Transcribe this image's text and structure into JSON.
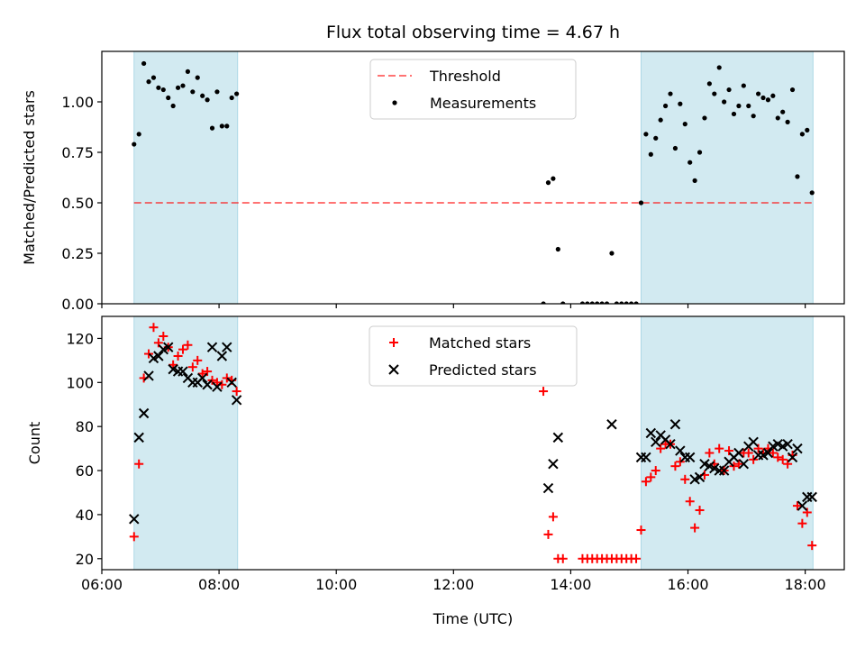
{
  "chart_data": [
    {
      "type": "scatter",
      "title": "Flux total observing time = 4.67 h",
      "ylabel": "Matched/Predicted stars",
      "xlim": [
        "06:00",
        "18:40"
      ],
      "ylim": [
        0,
        1.25
      ],
      "yticks": [
        "0.00",
        "0.25",
        "0.50",
        "0.75",
        "1.00"
      ],
      "xticks": [
        "06:00",
        "08:00",
        "10:00",
        "12:00",
        "14:00",
        "16:00",
        "18:00"
      ],
      "shaded_intervals": [
        [
          "06:33",
          "08:19"
        ],
        [
          "15:12",
          "18:08"
        ]
      ],
      "shade_color": "#add8e6",
      "threshold": {
        "name": "Threshold",
        "y": 0.5,
        "x_range": [
          "06:33",
          "18:08"
        ],
        "color": "#ff0000"
      },
      "legend_position": "upper-center",
      "series": [
        {
          "name": "Measurements",
          "marker": "dot",
          "color": "#000000",
          "points": [
            [
              "06:33",
              0.79
            ],
            [
              "06:38",
              0.84
            ],
            [
              "06:43",
              1.19
            ],
            [
              "06:48",
              1.1
            ],
            [
              "06:53",
              1.12
            ],
            [
              "06:58",
              1.07
            ],
            [
              "07:03",
              1.06
            ],
            [
              "07:08",
              1.02
            ],
            [
              "07:13",
              0.98
            ],
            [
              "07:18",
              1.07
            ],
            [
              "07:23",
              1.08
            ],
            [
              "07:28",
              1.15
            ],
            [
              "07:33",
              1.05
            ],
            [
              "07:38",
              1.12
            ],
            [
              "07:43",
              1.03
            ],
            [
              "07:48",
              1.01
            ],
            [
              "07:53",
              0.87
            ],
            [
              "07:58",
              1.05
            ],
            [
              "08:03",
              0.88
            ],
            [
              "08:08",
              0.88
            ],
            [
              "08:13",
              1.02
            ],
            [
              "08:18",
              1.04
            ],
            [
              "13:32",
              0.0
            ],
            [
              "13:37",
              0.6
            ],
            [
              "13:42",
              0.62
            ],
            [
              "13:47",
              0.27
            ],
            [
              "13:52",
              0.0
            ],
            [
              "14:12",
              0.0
            ],
            [
              "14:17",
              0.0
            ],
            [
              "14:22",
              0.0
            ],
            [
              "14:27",
              0.0
            ],
            [
              "14:32",
              0.0
            ],
            [
              "14:37",
              0.0
            ],
            [
              "14:42",
              0.25
            ],
            [
              "14:47",
              0.0
            ],
            [
              "14:52",
              0.0
            ],
            [
              "14:57",
              0.0
            ],
            [
              "15:02",
              0.0
            ],
            [
              "15:07",
              0.0
            ],
            [
              "15:12",
              0.5
            ],
            [
              "15:17",
              0.84
            ],
            [
              "15:22",
              0.74
            ],
            [
              "15:27",
              0.82
            ],
            [
              "15:32",
              0.91
            ],
            [
              "15:37",
              0.98
            ],
            [
              "15:42",
              1.04
            ],
            [
              "15:47",
              0.77
            ],
            [
              "15:52",
              0.99
            ],
            [
              "15:57",
              0.89
            ],
            [
              "16:02",
              0.7
            ],
            [
              "16:07",
              0.61
            ],
            [
              "16:12",
              0.75
            ],
            [
              "16:17",
              0.92
            ],
            [
              "16:22",
              1.09
            ],
            [
              "16:27",
              1.04
            ],
            [
              "16:32",
              1.17
            ],
            [
              "16:37",
              1.0
            ],
            [
              "16:42",
              1.06
            ],
            [
              "16:47",
              0.94
            ],
            [
              "16:52",
              0.98
            ],
            [
              "16:57",
              1.08
            ],
            [
              "17:02",
              0.98
            ],
            [
              "17:07",
              0.93
            ],
            [
              "17:12",
              1.04
            ],
            [
              "17:17",
              1.02
            ],
            [
              "17:22",
              1.01
            ],
            [
              "17:27",
              1.03
            ],
            [
              "17:32",
              0.92
            ],
            [
              "17:37",
              0.95
            ],
            [
              "17:42",
              0.9
            ],
            [
              "17:47",
              1.06
            ],
            [
              "17:52",
              0.63
            ],
            [
              "17:57",
              0.84
            ],
            [
              "18:02",
              0.86
            ],
            [
              "18:07",
              0.55
            ]
          ]
        }
      ]
    },
    {
      "type": "scatter",
      "xlabel": "Time (UTC)",
      "ylabel": "Count",
      "xlim": [
        "06:00",
        "18:40"
      ],
      "ylim": [
        15,
        130
      ],
      "yticks": [
        "20",
        "40",
        "60",
        "80",
        "100",
        "120"
      ],
      "xticks": [
        "06:00",
        "08:00",
        "10:00",
        "12:00",
        "14:00",
        "16:00",
        "18:00"
      ],
      "shaded_intervals": [
        [
          "06:33",
          "08:19"
        ],
        [
          "15:12",
          "18:08"
        ]
      ],
      "shade_color": "#add8e6",
      "legend_position": "upper-center",
      "series": [
        {
          "name": "Matched stars",
          "marker": "plus",
          "color": "#ff0000",
          "points": [
            [
              "06:33",
              30
            ],
            [
              "06:38",
              63
            ],
            [
              "06:43",
              102
            ],
            [
              "06:48",
              113
            ],
            [
              "06:53",
              125
            ],
            [
              "06:58",
              118
            ],
            [
              "07:03",
              121
            ],
            [
              "07:08",
              116
            ],
            [
              "07:13",
              108
            ],
            [
              "07:18",
              112
            ],
            [
              "07:23",
              115
            ],
            [
              "07:28",
              117
            ],
            [
              "07:33",
              107
            ],
            [
              "07:38",
              110
            ],
            [
              "07:43",
              104
            ],
            [
              "07:48",
              105
            ],
            [
              "07:53",
              101
            ],
            [
              "07:58",
              100
            ],
            [
              "08:03",
              99
            ],
            [
              "08:08",
              102
            ],
            [
              "08:13",
              101
            ],
            [
              "08:18",
              96
            ],
            [
              "13:32",
              96
            ],
            [
              "13:37",
              31
            ],
            [
              "13:42",
              39
            ],
            [
              "13:47",
              20
            ],
            [
              "13:52",
              20
            ],
            [
              "14:12",
              20
            ],
            [
              "14:17",
              20
            ],
            [
              "14:22",
              20
            ],
            [
              "14:27",
              20
            ],
            [
              "14:32",
              20
            ],
            [
              "14:37",
              20
            ],
            [
              "14:42",
              20
            ],
            [
              "14:47",
              20
            ],
            [
              "14:52",
              20
            ],
            [
              "14:57",
              20
            ],
            [
              "15:02",
              20
            ],
            [
              "15:07",
              20
            ],
            [
              "15:12",
              33
            ],
            [
              "15:17",
              55
            ],
            [
              "15:22",
              57
            ],
            [
              "15:27",
              60
            ],
            [
              "15:32",
              70
            ],
            [
              "15:37",
              72
            ],
            [
              "15:42",
              72
            ],
            [
              "15:47",
              62
            ],
            [
              "15:52",
              64
            ],
            [
              "15:57",
              56
            ],
            [
              "16:02",
              46
            ],
            [
              "16:07",
              34
            ],
            [
              "16:12",
              42
            ],
            [
              "16:17",
              58
            ],
            [
              "16:22",
              68
            ],
            [
              "16:27",
              63
            ],
            [
              "16:32",
              70
            ],
            [
              "16:37",
              60
            ],
            [
              "16:42",
              69
            ],
            [
              "16:47",
              62
            ],
            [
              "16:52",
              63
            ],
            [
              "16:57",
              68
            ],
            [
              "17:02",
              68
            ],
            [
              "17:07",
              65
            ],
            [
              "17:12",
              70
            ],
            [
              "17:17",
              68
            ],
            [
              "17:22",
              70
            ],
            [
              "17:27",
              68
            ],
            [
              "17:32",
              66
            ],
            [
              "17:37",
              65
            ],
            [
              "17:42",
              63
            ],
            [
              "17:47",
              67
            ],
            [
              "17:52",
              44
            ],
            [
              "17:57",
              36
            ],
            [
              "18:02",
              41
            ],
            [
              "18:07",
              26
            ]
          ]
        },
        {
          "name": "Predicted stars",
          "marker": "x",
          "color": "#000000",
          "points": [
            [
              "06:33",
              38
            ],
            [
              "06:38",
              75
            ],
            [
              "06:43",
              86
            ],
            [
              "06:48",
              103
            ],
            [
              "06:53",
              111
            ],
            [
              "06:58",
              112
            ],
            [
              "07:03",
              115
            ],
            [
              "07:08",
              116
            ],
            [
              "07:13",
              106
            ],
            [
              "07:18",
              105
            ],
            [
              "07:23",
              105
            ],
            [
              "07:28",
              102
            ],
            [
              "07:33",
              100
            ],
            [
              "07:38",
              100
            ],
            [
              "07:43",
              102
            ],
            [
              "07:48",
              99
            ],
            [
              "07:53",
              116
            ],
            [
              "07:58",
              98
            ],
            [
              "08:03",
              112
            ],
            [
              "08:08",
              116
            ],
            [
              "08:13",
              100
            ],
            [
              "08:18",
              92
            ],
            [
              "13:37",
              52
            ],
            [
              "13:42",
              63
            ],
            [
              "13:47",
              75
            ],
            [
              "14:42",
              81
            ],
            [
              "15:12",
              66
            ],
            [
              "15:17",
              66
            ],
            [
              "15:22",
              77
            ],
            [
              "15:27",
              73
            ],
            [
              "15:32",
              76
            ],
            [
              "15:37",
              74
            ],
            [
              "15:42",
              72
            ],
            [
              "15:47",
              81
            ],
            [
              "15:52",
              69
            ],
            [
              "15:57",
              66
            ],
            [
              "16:02",
              66
            ],
            [
              "16:07",
              56
            ],
            [
              "16:12",
              57
            ],
            [
              "16:17",
              63
            ],
            [
              "16:22",
              62
            ],
            [
              "16:27",
              61
            ],
            [
              "16:32",
              60
            ],
            [
              "16:37",
              60
            ],
            [
              "16:42",
              64
            ],
            [
              "16:47",
              66
            ],
            [
              "16:52",
              68
            ],
            [
              "16:57",
              63
            ],
            [
              "17:02",
              71
            ],
            [
              "17:07",
              73
            ],
            [
              "17:12",
              67
            ],
            [
              "17:17",
              67
            ],
            [
              "17:22",
              68
            ],
            [
              "17:27",
              71
            ],
            [
              "17:32",
              72
            ],
            [
              "17:37",
              71
            ],
            [
              "17:42",
              72
            ],
            [
              "17:47",
              66
            ],
            [
              "17:52",
              70
            ],
            [
              "17:57",
              44
            ],
            [
              "18:02",
              48
            ],
            [
              "18:07",
              48
            ]
          ]
        }
      ]
    }
  ]
}
